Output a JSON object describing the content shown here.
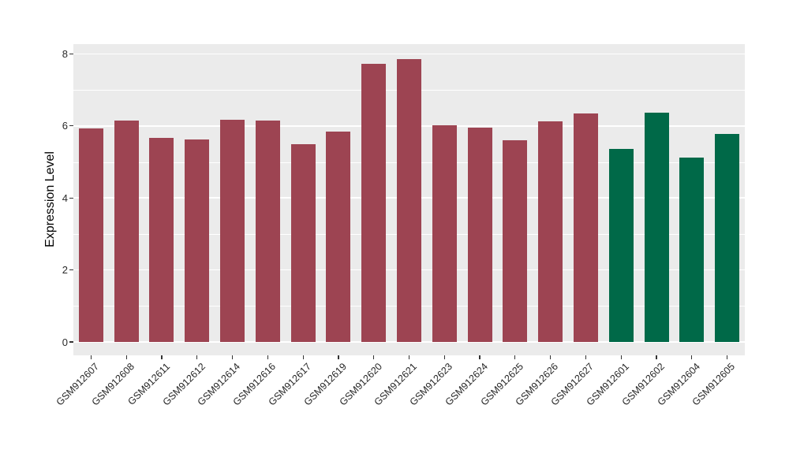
{
  "figure": {
    "background_color": "#FFFFFF",
    "panel_background_color": "#EBEBEB",
    "gridline_color": "#FFFFFF",
    "tick_color": "#333333"
  },
  "chart_data": {
    "type": "bar",
    "title": "",
    "xlabel": "",
    "ylabel": "Expression Level",
    "ylim": [
      0,
      8
    ],
    "yticks": [
      0,
      2,
      4,
      6,
      8
    ],
    "yticks_minor": [
      1,
      3,
      5,
      7
    ],
    "grid": "white major and minor horizontal gridlines on gray panel",
    "legend": "none",
    "x_label_rotation_deg": 45,
    "categories": [
      "GSM912607",
      "GSM912608",
      "GSM912611",
      "GSM912612",
      "GSM912614",
      "GSM912616",
      "GSM912617",
      "GSM912619",
      "GSM912620",
      "GSM912621",
      "GSM912623",
      "GSM912624",
      "GSM912625",
      "GSM912626",
      "GSM912627",
      "GSM912601",
      "GSM912602",
      "GSM912604",
      "GSM912605"
    ],
    "values": [
      5.93,
      6.15,
      5.66,
      5.62,
      6.17,
      6.14,
      5.5,
      5.85,
      7.73,
      7.86,
      6.02,
      5.95,
      5.6,
      6.12,
      6.34,
      5.36,
      6.37,
      5.13,
      5.78
    ],
    "bar_colors": [
      "#9D4452",
      "#9D4452",
      "#9D4452",
      "#9D4452",
      "#9D4452",
      "#9D4452",
      "#9D4452",
      "#9D4452",
      "#9D4452",
      "#9D4452",
      "#9D4452",
      "#9D4452",
      "#9D4452",
      "#9D4452",
      "#9D4452",
      "#006948",
      "#006948",
      "#006948",
      "#006948"
    ],
    "color_groups": {
      "maroon": "#9D4452",
      "green": "#006948"
    }
  }
}
